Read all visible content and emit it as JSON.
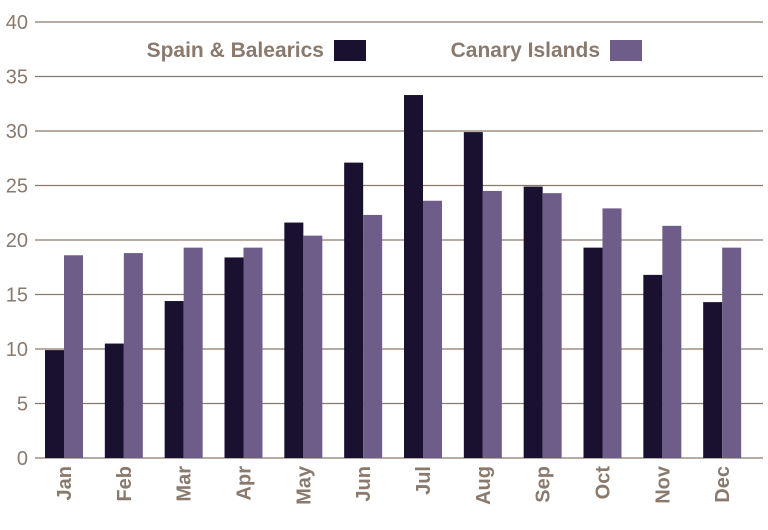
{
  "chart_data": {
    "type": "bar",
    "title": "",
    "xlabel": "",
    "ylabel": "",
    "categories": [
      "Jan",
      "Feb",
      "Mar",
      "Apr",
      "May",
      "Jun",
      "Jul",
      "Aug",
      "Sep",
      "Oct",
      "Nov",
      "Dec"
    ],
    "series": [
      {
        "name": "Spain & Balearics",
        "color": "#1a1030",
        "values": [
          9.9,
          10.5,
          14.4,
          18.4,
          21.6,
          27.1,
          33.3,
          29.9,
          24.9,
          19.3,
          16.8,
          14.3
        ]
      },
      {
        "name": "Canary Islands",
        "color": "#6f5d89",
        "values": [
          18.6,
          18.8,
          19.3,
          19.3,
          20.4,
          22.3,
          23.6,
          24.5,
          24.3,
          22.9,
          21.3,
          19.3
        ]
      }
    ],
    "ylim": [
      0,
      40
    ],
    "yticks": [
      0,
      5,
      10,
      15,
      20,
      25,
      30,
      35,
      40
    ],
    "grid": true,
    "legend": "top-center"
  }
}
